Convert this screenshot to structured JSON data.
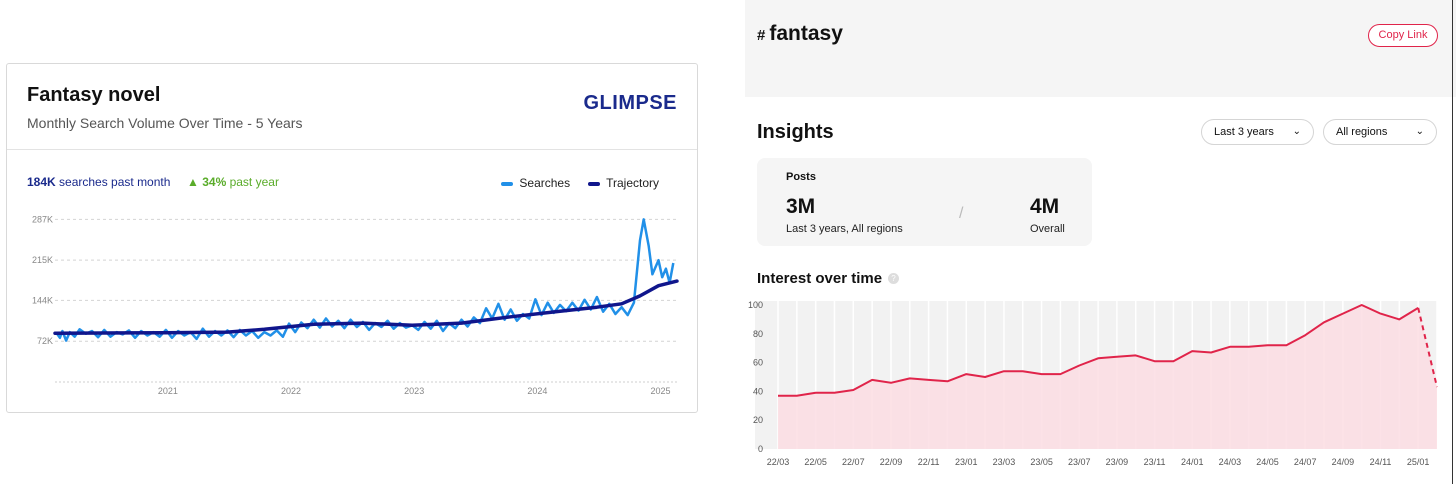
{
  "glimpse": {
    "title": "Fantasy novel",
    "subtitle": "Monthly Search Volume Over Time - 5 Years",
    "logo": "GLIMPSE",
    "searches_value": "184K",
    "searches_text": " searches past month",
    "growth_value": "34%",
    "growth_text": " past year",
    "legend_searches": "Searches",
    "legend_trajectory": "Trajectory",
    "colors": {
      "searches": "#2190e8",
      "trajectory": "#10168c",
      "growth": "#5aac2a"
    }
  },
  "tag_panel": {
    "hash": "#",
    "tag": "fantasy",
    "copy_button": "Copy Link",
    "insights_title": "Insights",
    "period_select": "Last 3 years",
    "region_select": "All regions",
    "posts_label": "Posts",
    "posts_value": "3M",
    "posts_caption": "Last 3 years, All regions",
    "separator": "/",
    "overall_value": "4M",
    "overall_caption": "Overall",
    "interest_title": "Interest over time",
    "help_icon": "?",
    "colors": {
      "line": "#e0244a",
      "fill": "#fbdde3"
    }
  },
  "chart_data": [
    {
      "type": "line",
      "title": "Fantasy novel",
      "subtitle": "Monthly Search Volume Over Time - 5 Years",
      "y_ticks": [
        "72K",
        "144K",
        "215K",
        "287K"
      ],
      "ylim": [
        0,
        300000
      ],
      "x_ticks": [
        "2021",
        "2022",
        "2023",
        "2024",
        "2025"
      ],
      "xlim": [
        2020.1,
        2025.15
      ],
      "grid": true,
      "legend": "top-right",
      "series": [
        {
          "name": "Searches",
          "points": [
            [
              2020.12,
              84000
            ],
            [
              2020.14,
              78000
            ],
            [
              2020.16,
              90000
            ],
            [
              2020.19,
              73000
            ],
            [
              2020.22,
              88000
            ],
            [
              2020.26,
              80000
            ],
            [
              2020.3,
              93000
            ],
            [
              2020.35,
              85000
            ],
            [
              2020.4,
              90000
            ],
            [
              2020.45,
              79000
            ],
            [
              2020.5,
              92000
            ],
            [
              2020.55,
              80000
            ],
            [
              2020.6,
              88000
            ],
            [
              2020.65,
              84000
            ],
            [
              2020.7,
              91000
            ],
            [
              2020.75,
              78000
            ],
            [
              2020.8,
              90000
            ],
            [
              2020.85,
              82000
            ],
            [
              2020.9,
              88000
            ],
            [
              2020.95,
              80000
            ],
            [
              2021.0,
              92000
            ],
            [
              2021.05,
              78000
            ],
            [
              2021.1,
              90000
            ],
            [
              2021.15,
              82000
            ],
            [
              2021.2,
              88000
            ],
            [
              2021.25,
              76000
            ],
            [
              2021.3,
              94000
            ],
            [
              2021.35,
              80000
            ],
            [
              2021.4,
              90000
            ],
            [
              2021.45,
              82000
            ],
            [
              2021.5,
              91000
            ],
            [
              2021.55,
              79000
            ],
            [
              2021.6,
              92000
            ],
            [
              2021.65,
              82000
            ],
            [
              2021.7,
              90000
            ],
            [
              2021.75,
              78000
            ],
            [
              2021.8,
              88000
            ],
            [
              2021.85,
              82000
            ],
            [
              2021.9,
              91000
            ],
            [
              2021.95,
              80000
            ],
            [
              2022.0,
              103000
            ],
            [
              2022.05,
              88000
            ],
            [
              2022.1,
              105000
            ],
            [
              2022.15,
              95000
            ],
            [
              2022.2,
              110000
            ],
            [
              2022.25,
              96000
            ],
            [
              2022.3,
              112000
            ],
            [
              2022.35,
              98000
            ],
            [
              2022.4,
              108000
            ],
            [
              2022.45,
              95000
            ],
            [
              2022.5,
              110000
            ],
            [
              2022.55,
              97000
            ],
            [
              2022.6,
              106000
            ],
            [
              2022.65,
              92000
            ],
            [
              2022.7,
              104000
            ],
            [
              2022.75,
              97000
            ],
            [
              2022.8,
              108000
            ],
            [
              2022.85,
              94000
            ],
            [
              2022.9,
              104000
            ],
            [
              2022.95,
              96000
            ],
            [
              2023.0,
              100000
            ],
            [
              2023.05,
              92000
            ],
            [
              2023.1,
              106000
            ],
            [
              2023.15,
              94000
            ],
            [
              2023.2,
              108000
            ],
            [
              2023.25,
              90000
            ],
            [
              2023.3,
              104000
            ],
            [
              2023.35,
              95000
            ],
            [
              2023.4,
              110000
            ],
            [
              2023.45,
              98000
            ],
            [
              2023.5,
              114000
            ],
            [
              2023.55,
              104000
            ],
            [
              2023.6,
              130000
            ],
            [
              2023.65,
              112000
            ],
            [
              2023.7,
              138000
            ],
            [
              2023.75,
              110000
            ],
            [
              2023.8,
              128000
            ],
            [
              2023.85,
              108000
            ],
            [
              2023.9,
              120000
            ],
            [
              2023.95,
              112000
            ],
            [
              2024.0,
              146000
            ],
            [
              2024.05,
              118000
            ],
            [
              2024.1,
              140000
            ],
            [
              2024.15,
              122000
            ],
            [
              2024.2,
              136000
            ],
            [
              2024.25,
              125000
            ],
            [
              2024.3,
              140000
            ],
            [
              2024.35,
              126000
            ],
            [
              2024.4,
              145000
            ],
            [
              2024.45,
              128000
            ],
            [
              2024.5,
              150000
            ],
            [
              2024.55,
              124000
            ],
            [
              2024.6,
              138000
            ],
            [
              2024.65,
              120000
            ],
            [
              2024.7,
              132000
            ],
            [
              2024.75,
              118000
            ],
            [
              2024.8,
              140000
            ],
            [
              2024.85,
              250000
            ],
            [
              2024.88,
              287000
            ],
            [
              2024.92,
              240000
            ],
            [
              2024.95,
              190000
            ],
            [
              2025.0,
              215000
            ],
            [
              2025.03,
              185000
            ],
            [
              2025.06,
              200000
            ],
            [
              2025.09,
              175000
            ],
            [
              2025.12,
              210000
            ]
          ]
        },
        {
          "name": "Trajectory",
          "points": [
            [
              2020.1,
              86000
            ],
            [
              2021.0,
              87000
            ],
            [
              2021.5,
              88000
            ],
            [
              2021.8,
              93000
            ],
            [
              2022.2,
              102000
            ],
            [
              2022.6,
              104000
            ],
            [
              2023.0,
              100000
            ],
            [
              2023.4,
              104000
            ],
            [
              2023.8,
              115000
            ],
            [
              2024.2,
              125000
            ],
            [
              2024.5,
              132000
            ],
            [
              2024.7,
              138000
            ],
            [
              2024.85,
              152000
            ],
            [
              2025.0,
              170000
            ],
            [
              2025.15,
              178000
            ]
          ]
        }
      ]
    },
    {
      "type": "area",
      "title": "Interest over time",
      "categories": [
        "22/03",
        "22/04",
        "22/05",
        "22/06",
        "22/07",
        "22/08",
        "22/09",
        "22/10",
        "22/11",
        "22/12",
        "23/01",
        "23/02",
        "23/03",
        "23/04",
        "23/05",
        "23/06",
        "23/07",
        "23/08",
        "23/09",
        "23/10",
        "23/11",
        "23/12",
        "24/01",
        "24/02",
        "24/03",
        "24/04",
        "24/05",
        "24/06",
        "24/07",
        "24/08",
        "24/09",
        "24/10",
        "24/11",
        "24/12",
        "25/01",
        "25/02"
      ],
      "x_tick_labels": [
        "22/03",
        "22/05",
        "22/07",
        "22/09",
        "22/11",
        "23/01",
        "23/03",
        "23/05",
        "23/07",
        "23/09",
        "23/11",
        "24/01",
        "24/03",
        "24/05",
        "24/07",
        "24/09",
        "24/11",
        "25/01"
      ],
      "values": [
        37,
        37,
        39,
        39,
        41,
        48,
        46,
        49,
        48,
        47,
        52,
        50,
        54,
        54,
        52,
        52,
        58,
        63,
        64,
        65,
        61,
        61,
        68,
        67,
        71,
        71,
        72,
        72,
        79,
        88,
        94,
        100,
        94,
        90,
        98,
        43
      ],
      "dashed_last_segment": true,
      "y_ticks": [
        0,
        20,
        40,
        60,
        80,
        100
      ],
      "ylim": [
        0,
        100
      ],
      "grid": true
    }
  ]
}
